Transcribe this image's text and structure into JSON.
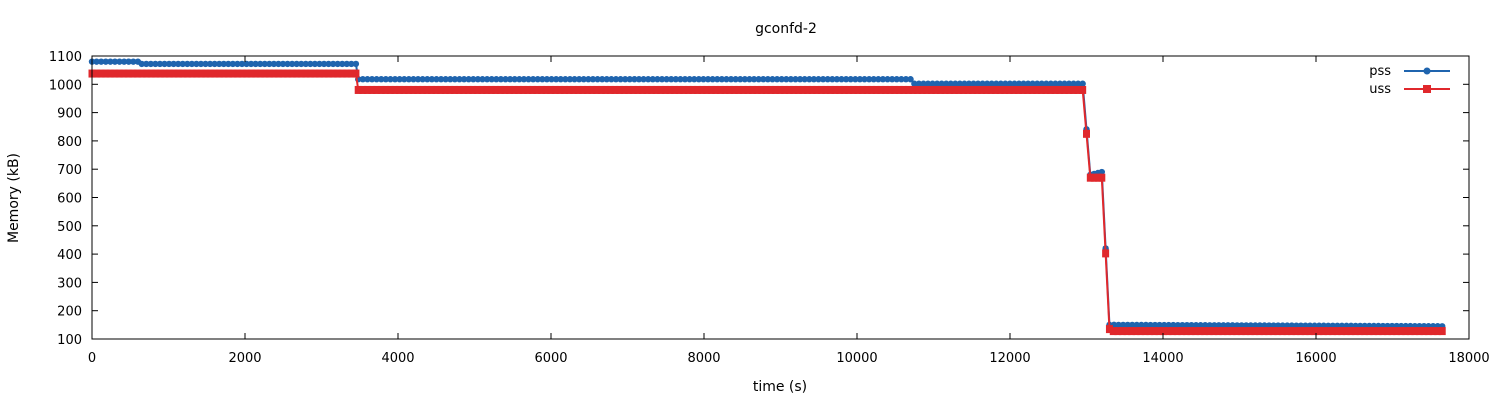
{
  "chart_data": {
    "type": "line",
    "title": "gconfd-2",
    "xlabel": "time (s)",
    "ylabel": "Memory (kB)",
    "xlim": [
      0,
      18000
    ],
    "ylim": [
      100,
      1100
    ],
    "xticks": [
      "0",
      "2000",
      "4000",
      "6000",
      "8000",
      "10000",
      "12000",
      "14000",
      "16000",
      "18000"
    ],
    "yticks": [
      "100",
      "200",
      "300",
      "400",
      "500",
      "600",
      "700",
      "800",
      "900",
      "1000",
      "1100"
    ],
    "grid": false,
    "legend_position": "top-right",
    "series": [
      {
        "name": "pss",
        "color": "#1f64ae",
        "marker": "circle",
        "points": [
          [
            0,
            1080
          ],
          [
            600,
            1080
          ],
          [
            650,
            1072
          ],
          [
            3450,
            1072
          ],
          [
            3480,
            1018
          ],
          [
            10700,
            1018
          ],
          [
            10750,
            1002
          ],
          [
            12950,
            1002
          ],
          [
            13050,
            680
          ],
          [
            13200,
            690
          ],
          [
            13300,
            150
          ],
          [
            17650,
            145
          ]
        ]
      },
      {
        "name": "uss",
        "color": "#e0282c",
        "marker": "square",
        "points": [
          [
            0,
            1038
          ],
          [
            3450,
            1038
          ],
          [
            3480,
            980
          ],
          [
            12950,
            980
          ],
          [
            13050,
            670
          ],
          [
            13200,
            670
          ],
          [
            13300,
            135
          ],
          [
            13350,
            128
          ],
          [
            17650,
            128
          ]
        ]
      }
    ]
  }
}
